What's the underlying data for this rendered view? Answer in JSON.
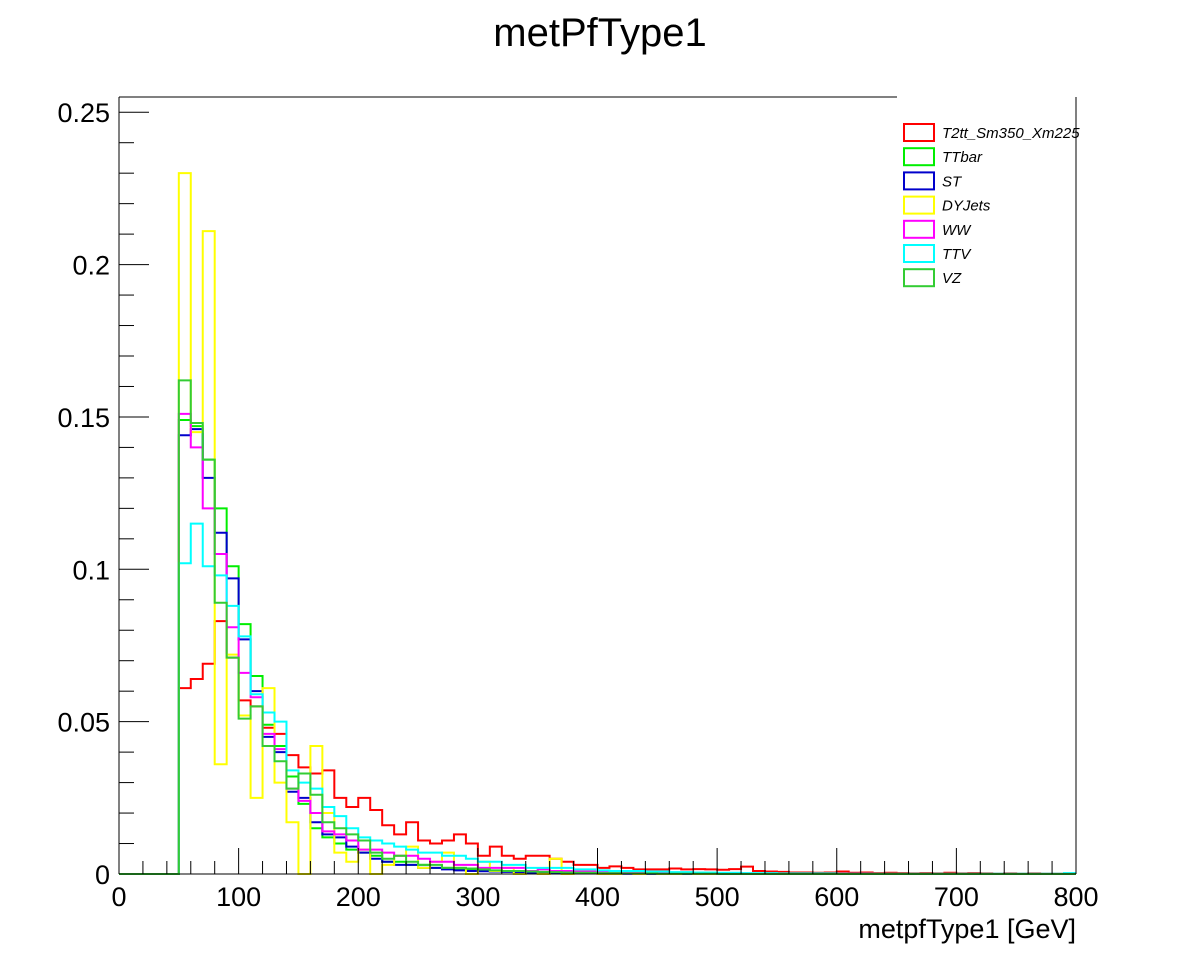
{
  "chart_data": {
    "type": "line",
    "title": "metPfType1",
    "xlabel": "metpfType1 [GeV]",
    "ylabel": "",
    "xlim": [
      0,
      800
    ],
    "ylim": [
      0,
      0.255
    ],
    "bin_width": 10,
    "x_ticks": [
      "0",
      "100",
      "200",
      "300",
      "400",
      "500",
      "600",
      "700",
      "800"
    ],
    "y_ticks": [
      "0",
      "0.05",
      "0.1",
      "0.15",
      "0.2",
      "0.25"
    ],
    "legend_position": "top-right",
    "grid": false,
    "series": [
      {
        "name": "T2tt_Sm350_Xm225",
        "color": "#ff0000",
        "values": [
          0,
          0,
          0,
          0,
          0,
          0.061,
          0.064,
          0.069,
          0.083,
          0.071,
          0.057,
          0.055,
          0.048,
          0.046,
          0.039,
          0.035,
          0.033,
          0.034,
          0.025,
          0.022,
          0.025,
          0.021,
          0.016,
          0.013,
          0.017,
          0.011,
          0.01,
          0.011,
          0.013,
          0.01,
          0.006,
          0.009,
          0.006,
          0.005,
          0.006,
          0.006,
          0.005,
          0.004,
          0.003,
          0.003,
          0.002,
          0.0025,
          0.002,
          0.0015,
          0.0015,
          0.0015,
          0.0018,
          0.0015,
          0.0016,
          0.0015,
          0.0014,
          0.0016,
          0.0024,
          0.001,
          0.0008,
          0.0007,
          0.0005,
          0.0005,
          0.0004,
          0.0005,
          0.0008,
          0.0004,
          0.0005,
          0.0003,
          0.0004,
          0.0003,
          0.0002,
          0.0003,
          0.0002,
          0.0004,
          0.0002,
          0.0003,
          0.0002,
          0.0001,
          0.0002,
          0.0001,
          0.0002,
          0.0001,
          0.0001,
          0.0002
        ]
      },
      {
        "name": "TTbar",
        "color": "#00ee00",
        "values": [
          0,
          0,
          0,
          0,
          0,
          0.149,
          0.147,
          0.136,
          0.12,
          0.101,
          0.082,
          0.065,
          0.049,
          0.042,
          0.032,
          0.023,
          0.015,
          0.012,
          0.01,
          0.008,
          0.007,
          0.006,
          0.004,
          0.004,
          0.003,
          0.003,
          0.002,
          0.002,
          0.0015,
          0.0012,
          0.001,
          0.0009,
          0.0008,
          0.0007,
          0.0006,
          0.0005,
          0.0004,
          0.0004,
          0.0003,
          0.0003,
          0.0002,
          0.0002,
          0.0002,
          0.0002,
          0.0001,
          0.0001,
          0.0001,
          0.0001,
          0.0001,
          0.0001,
          0.0001,
          0.0001,
          0.0001,
          0.0001,
          0,
          0,
          0,
          0,
          0,
          0,
          0,
          0,
          0,
          0,
          0,
          0,
          0,
          0,
          0,
          0,
          0,
          0,
          0,
          0,
          0,
          0,
          0,
          0,
          0,
          0
        ]
      },
      {
        "name": "ST",
        "color": "#0000cc",
        "values": [
          0,
          0,
          0,
          0,
          0,
          0.144,
          0.146,
          0.13,
          0.112,
          0.097,
          0.077,
          0.06,
          0.045,
          0.04,
          0.027,
          0.025,
          0.017,
          0.013,
          0.012,
          0.009,
          0.007,
          0.005,
          0.004,
          0.003,
          0.003,
          0.002,
          0.002,
          0.0015,
          0.0012,
          0.001,
          0.0009,
          0.0008,
          0.0007,
          0.0006,
          0.0005,
          0.0004,
          0.0004,
          0.0003,
          0.0003,
          0.0002,
          0.0002,
          0.0002,
          0.0001,
          0.0001,
          0.0001,
          0.0001,
          0.0001,
          0.0001,
          0.0001,
          0.0001,
          0,
          0,
          0,
          0,
          0,
          0,
          0,
          0,
          0,
          0,
          0,
          0,
          0,
          0,
          0,
          0,
          0,
          0,
          0,
          0,
          0,
          0,
          0,
          0,
          0,
          0,
          0,
          0,
          0,
          0
        ]
      },
      {
        "name": "DYJets",
        "color": "#ffff00",
        "values": [
          0,
          0,
          0,
          0,
          0,
          0.23,
          0.145,
          0.211,
          0.036,
          0.072,
          0.052,
          0.025,
          0.061,
          0.03,
          0.017,
          0,
          0.042,
          0.02,
          0.007,
          0.004,
          0.008,
          0,
          0.003,
          0.006,
          0.009,
          0.002,
          0.004,
          0.007,
          0.002,
          0,
          0.004,
          0.001,
          0.002,
          0,
          0.001,
          0,
          0.005,
          0,
          0.001,
          0.001,
          0,
          0,
          0.001,
          0,
          0.0005,
          0,
          0,
          0.0005,
          0,
          0,
          0,
          0,
          0,
          0,
          0,
          0,
          0,
          0,
          0,
          0,
          0,
          0,
          0,
          0,
          0,
          0,
          0,
          0,
          0,
          0,
          0,
          0,
          0,
          0,
          0,
          0,
          0,
          0,
          0,
          0
        ]
      },
      {
        "name": "WW",
        "color": "#ff00ff",
        "values": [
          0,
          0,
          0,
          0,
          0,
          0.151,
          0.14,
          0.12,
          0.105,
          0.081,
          0.066,
          0.058,
          0.046,
          0.041,
          0.028,
          0.024,
          0.02,
          0.014,
          0.013,
          0.011,
          0.008,
          0.008,
          0.007,
          0.006,
          0.006,
          0.005,
          0.004,
          0.004,
          0.003,
          0.003,
          0.002,
          0.002,
          0.002,
          0.002,
          0.001,
          0.0015,
          0.001,
          0.001,
          0.0008,
          0.0008,
          0.0006,
          0.0006,
          0.0005,
          0.0005,
          0.0004,
          0.0004,
          0.0003,
          0.0003,
          0.0003,
          0.0002,
          0.0002,
          0.0002,
          0.0002,
          0.0001,
          0.0001,
          0.0001,
          0.0001,
          0.0001,
          0.0001,
          0.0001,
          0.0001,
          0.0001,
          0.0001,
          0,
          0,
          0,
          0,
          0,
          0,
          0,
          0,
          0,
          0,
          0,
          0,
          0,
          0,
          0,
          0,
          0
        ]
      },
      {
        "name": "TTV",
        "color": "#00ffff",
        "values": [
          0,
          0,
          0,
          0,
          0,
          0.102,
          0.115,
          0.101,
          0.098,
          0.088,
          0.078,
          0.059,
          0.053,
          0.05,
          0.034,
          0.03,
          0.028,
          0.022,
          0.019,
          0.015,
          0.012,
          0.011,
          0.01,
          0.009,
          0.008,
          0.007,
          0.007,
          0.006,
          0.006,
          0.005,
          0.004,
          0.004,
          0.003,
          0.003,
          0.002,
          0.002,
          0.002,
          0.002,
          0.0015,
          0.0015,
          0.0012,
          0.001,
          0.001,
          0.001,
          0.0008,
          0.0008,
          0.0006,
          0.0006,
          0.0005,
          0.0005,
          0.0004,
          0.0004,
          0.0003,
          0.0003,
          0.0003,
          0.0002,
          0.0002,
          0.0002,
          0.0002,
          0.0002,
          0.0001,
          0.0001,
          0.0001,
          0.0001,
          0.0001,
          0.0001,
          0.0001,
          0.0001,
          0.0001,
          0.0001,
          0.0001,
          0.0001,
          0.0001,
          0.0001,
          0.0001,
          0.0001,
          0.0001,
          0.0001,
          0.0001,
          0.0003
        ]
      },
      {
        "name": "VZ",
        "color": "#33cc33",
        "values": [
          0,
          0,
          0,
          0,
          0,
          0.162,
          0.148,
          0.136,
          0.089,
          0.071,
          0.051,
          0.055,
          0.042,
          0.037,
          0.028,
          0.033,
          0.026,
          0.017,
          0.015,
          0.013,
          0.011,
          0.007,
          0.005,
          0.006,
          0.004,
          0.003,
          0.003,
          0.002,
          0.002,
          0.0018,
          0.0015,
          0.0012,
          0.001,
          0.001,
          0.0008,
          0.0007,
          0.0006,
          0.0005,
          0.0004,
          0.0004,
          0.0003,
          0.0003,
          0.0002,
          0.0002,
          0.0002,
          0.0001,
          0.0001,
          0.0001,
          0.0001,
          0.0001,
          0,
          0,
          0,
          0,
          0,
          0,
          0,
          0,
          0,
          0,
          0,
          0,
          0,
          0,
          0,
          0,
          0,
          0,
          0,
          0,
          0,
          0,
          0,
          0,
          0,
          0,
          0,
          0,
          0,
          0
        ]
      }
    ]
  }
}
